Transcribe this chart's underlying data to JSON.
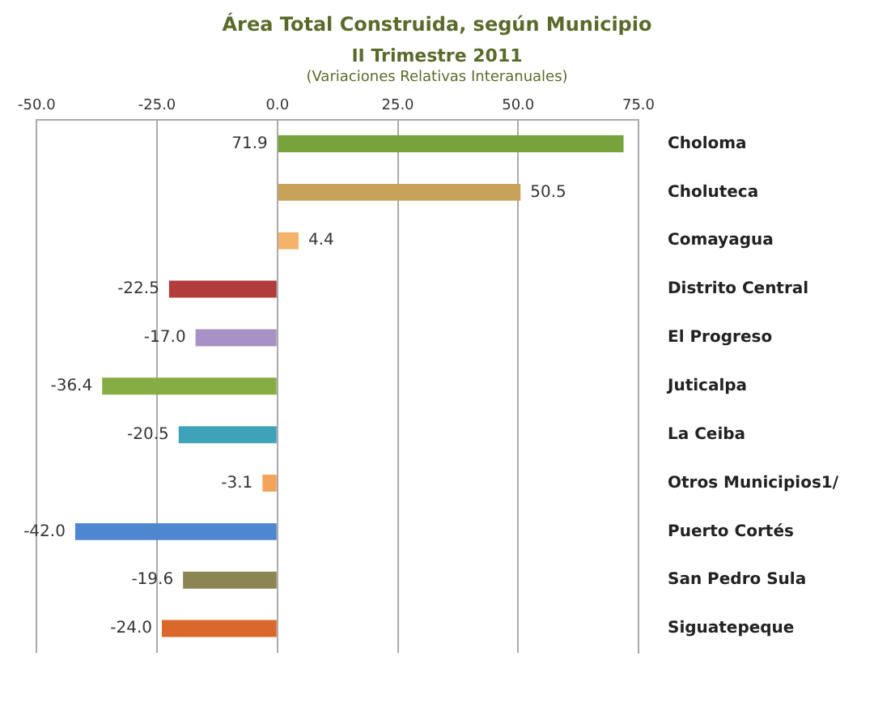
{
  "chart_data": {
    "type": "bar",
    "orientation": "horizontal",
    "title": "Área Total Construida, según Municipio",
    "subtitle": "II Trimestre 2011",
    "annotations": [
      "(Variaciones Relativas Interanuales)"
    ],
    "categories": [
      "Choloma",
      "Choluteca",
      "Comayagua",
      "Distrito Central",
      "El Progreso",
      "Juticalpa",
      "La Ceiba",
      "Otros Municipios1/",
      "Puerto Cortés",
      "San Pedro Sula",
      "Siguatepeque"
    ],
    "values": [
      71.9,
      50.5,
      4.4,
      -22.5,
      -17.0,
      -36.4,
      -20.5,
      -3.1,
      -42.0,
      -19.6,
      -24.0
    ],
    "colors": [
      "#77a33c",
      "#c9a25a",
      "#f3b36a",
      "#b23b3b",
      "#a891c4",
      "#86ad43",
      "#3ea3b8",
      "#f6a35a",
      "#4f86d0",
      "#8b8554",
      "#d9682a"
    ],
    "value_labels": [
      "71.9",
      "50.5",
      "4.4",
      "-22.5",
      "-17.0",
      "-36.4",
      "-20.5",
      "-3.1",
      "-42.0",
      "-19.6",
      "-24.0"
    ],
    "xlim": [
      -50,
      75
    ],
    "xticks": [
      {
        "value": -50,
        "label": "-50.0"
      },
      {
        "value": -25,
        "label": "-25.0"
      },
      {
        "value": 0,
        "label": "0.0"
      },
      {
        "value": 25,
        "label": "25.0"
      },
      {
        "value": 50,
        "label": "50.0"
      },
      {
        "value": 75,
        "label": "75.0"
      }
    ],
    "grid": "x",
    "legend": false
  }
}
